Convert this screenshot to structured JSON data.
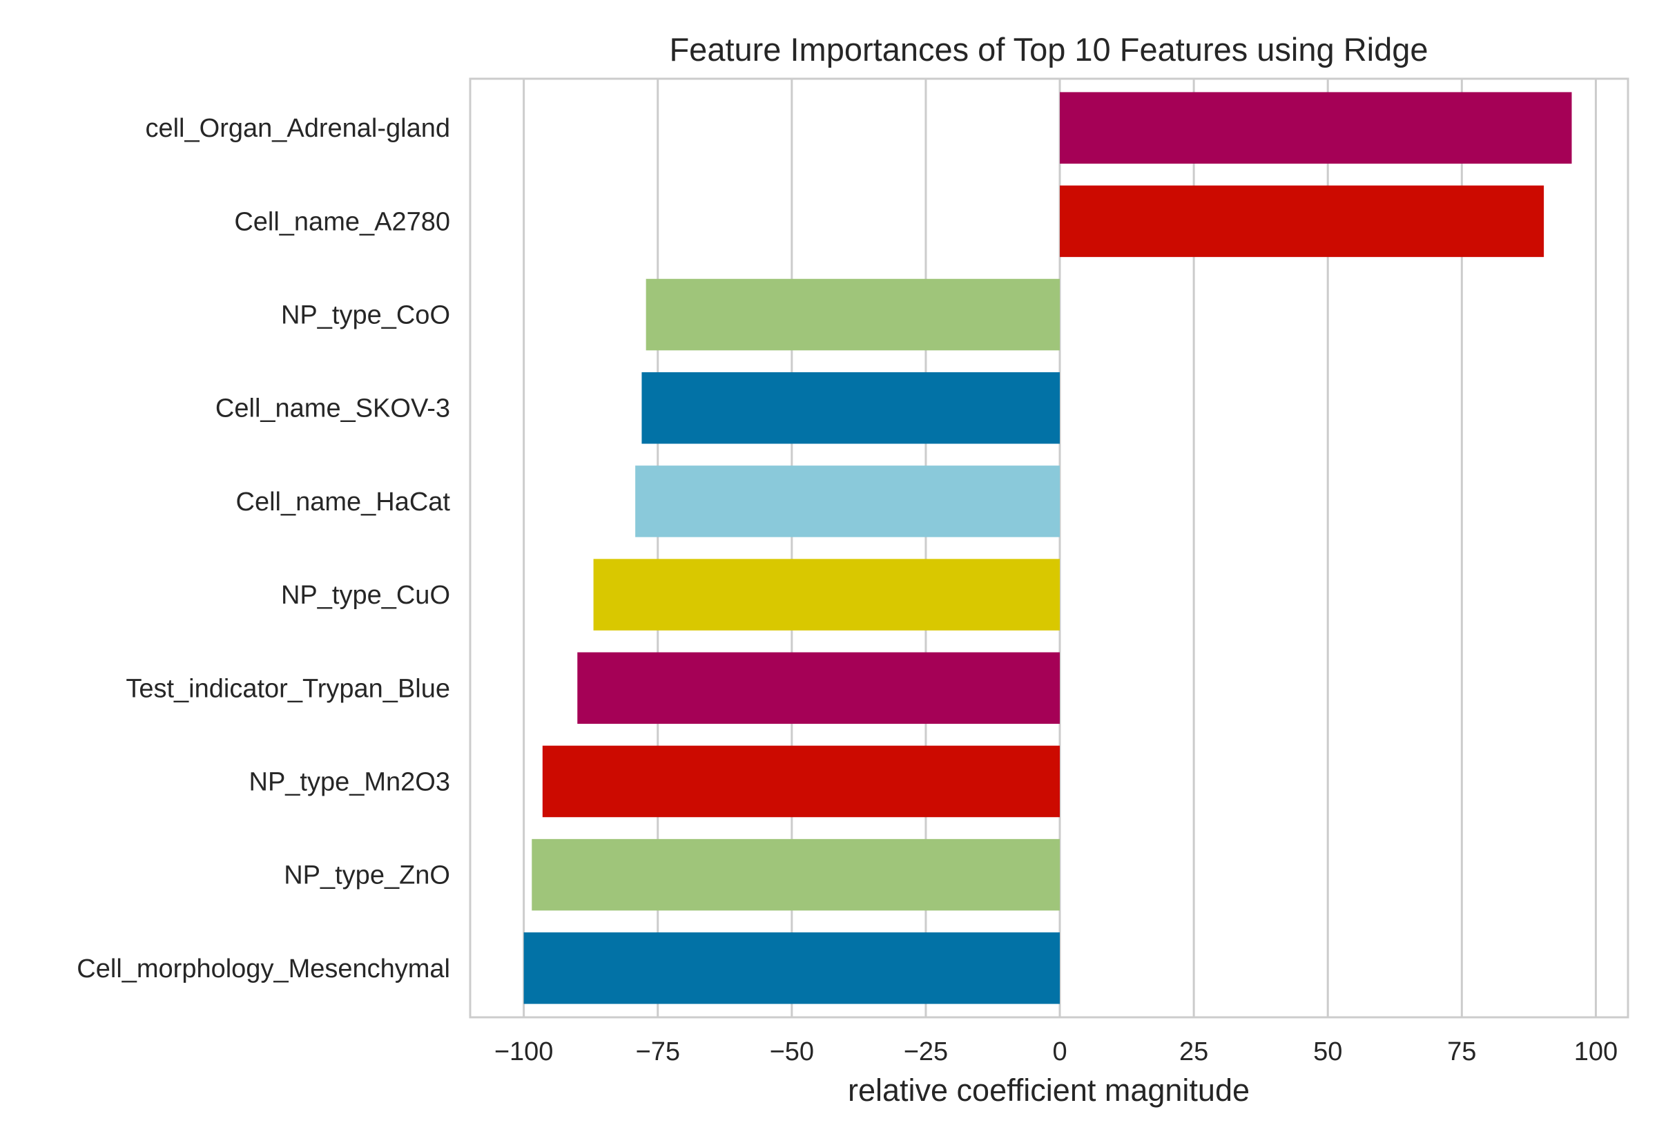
{
  "chart_data": {
    "type": "bar",
    "orientation": "horizontal",
    "title": "Feature Importances of Top 10 Features using Ridge",
    "xlabel": "relative coefficient magnitude",
    "ylabel": "",
    "xlim": [
      -110,
      106
    ],
    "xticks": [
      -100,
      -75,
      -50,
      -25,
      0,
      25,
      50,
      75,
      100
    ],
    "xtick_labels": [
      "−100",
      "−75",
      "−50",
      "−25",
      "0",
      "25",
      "50",
      "75",
      "100"
    ],
    "grid": true,
    "categories": [
      "cell_Organ_Adrenal-gland",
      "Cell_name_A2780",
      "NP_type_CoO",
      "Cell_name_SKOV-3",
      "Cell_name_HaCat",
      "NP_type_CuO",
      "Test_indicator_Trypan_Blue",
      "NP_type_Mn2O3",
      "NP_type_ZnO",
      "Cell_morphology_Mesenchymal"
    ],
    "values": [
      95.5,
      90.3,
      -77.2,
      -78.0,
      -79.2,
      -87.0,
      -90.0,
      -96.5,
      -98.5,
      -100.0
    ],
    "colors": [
      "#a50156",
      "#cc0a00",
      "#9fc57a",
      "#0272a6",
      "#8ac9da",
      "#d9c800",
      "#a50156",
      "#cc0a00",
      "#9fc57a",
      "#0272a6"
    ]
  }
}
